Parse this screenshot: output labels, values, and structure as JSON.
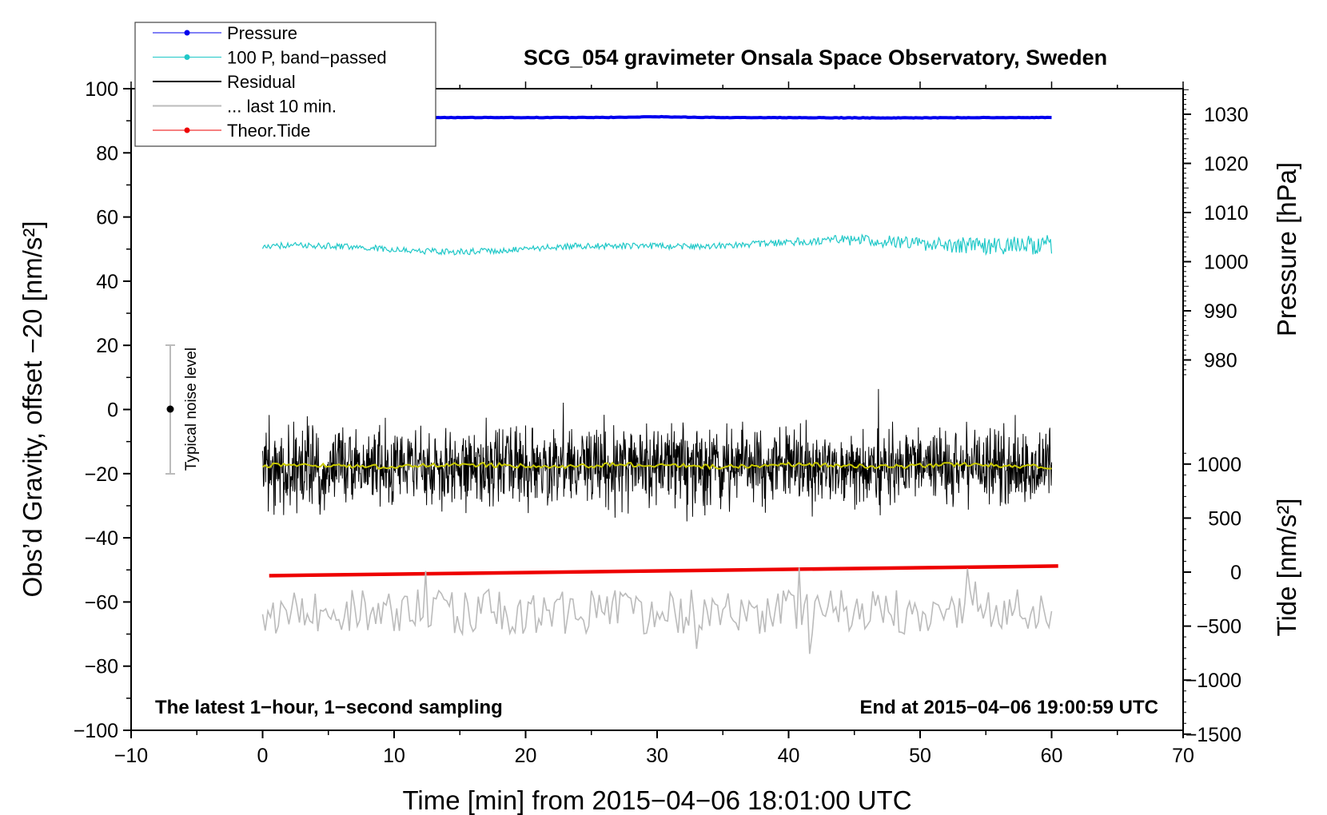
{
  "chart_data": {
    "type": "line",
    "title": "SCG_054 gravimeter Onsala Space Observatory, Sweden",
    "xlabel": "Time [min] from 2015−04−06 18:01:00 UTC",
    "ylabel": "Obs’d Gravity, offset −20 [nm/s²]",
    "xlim": [
      -10,
      70
    ],
    "ylim": [
      -100,
      100
    ],
    "x_ticks": [
      "−10",
      "0",
      "10",
      "20",
      "30",
      "40",
      "50",
      "60",
      "70"
    ],
    "y_ticks": [
      "100",
      "80",
      "60",
      "40",
      "20",
      "0",
      "−20",
      "−40",
      "−60",
      "−80",
      "−100"
    ],
    "pressure_axis": {
      "label": "Pressure [hPa]",
      "ticks": [
        "1030",
        "1020",
        "1010",
        "1000",
        "990",
        "980"
      ],
      "tick_values": [
        1030,
        1020,
        1010,
        1000,
        990,
        980
      ]
    },
    "tide_axis": {
      "label": "Tide [nm/s²]",
      "ticks": [
        "1000",
        "500",
        "0",
        "−500",
        "−1000",
        "−1500"
      ],
      "tick_values": [
        1000,
        500,
        0,
        -500,
        -1000,
        -1500
      ]
    },
    "legend": [
      {
        "label": "Pressure",
        "color": "#0000ee",
        "style": "line-dot"
      },
      {
        "label": "100 P, band−passed",
        "color": "#20c8c8",
        "style": "line-dot"
      },
      {
        "label": "Residual",
        "color": "#000000",
        "style": "line"
      },
      {
        "label": "... last 10 min.",
        "color": "#bbbbbb",
        "style": "line"
      },
      {
        "label": "Theor.Tide",
        "color": "#ee0000",
        "style": "line-dot"
      }
    ],
    "series": [
      {
        "name": "Pressure",
        "color": "#0000ee",
        "x_range": [
          0,
          60
        ],
        "approx_level_gravity_units": 91
      },
      {
        "name": "100 P, band−passed",
        "color": "#20c8c8",
        "x_range": [
          0,
          60
        ],
        "center": 51,
        "amplitude": 2.5
      },
      {
        "name": "Residual",
        "color": "#000000",
        "x_range": [
          0,
          60
        ],
        "center": -17.5,
        "amplitude": 8
      },
      {
        "name": "Residual smoothed",
        "color": "#c8c800",
        "x_range": [
          0,
          60
        ],
        "center": -17.5
      },
      {
        "name": "Theor.Tide",
        "color": "#ee0000",
        "x": [
          0.5,
          60.5
        ],
        "y": [
          -51.8,
          -48.8
        ]
      },
      {
        "name": "... last 10 min.",
        "color": "#bbbbbb",
        "x_range": [
          0,
          60
        ],
        "center": -63,
        "amplitude": 7
      }
    ],
    "noise_level": {
      "label": "Typical noise level",
      "x": -7,
      "y": 0,
      "y_range": [
        -20,
        20
      ]
    },
    "annotations": {
      "left": "The latest 1−hour, 1−second sampling",
      "right": "End at 2015−04−06 19:00:59 UTC"
    }
  }
}
